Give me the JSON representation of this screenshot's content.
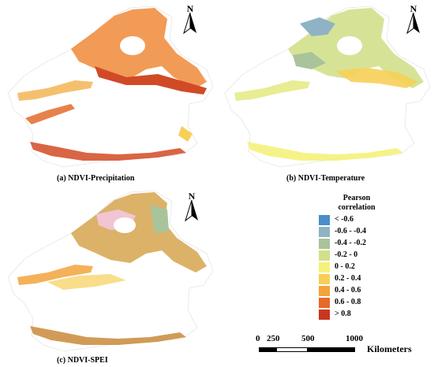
{
  "panels": [
    {
      "id": "a",
      "caption": "(a) NDVI-Precipitation"
    },
    {
      "id": "b",
      "caption": "(b) NDVI-Temperature"
    },
    {
      "id": "c",
      "caption": "(c) NDVI-SPEI"
    }
  ],
  "north_arrow": {
    "letter": "N"
  },
  "legend": {
    "title_line1": "Pearson",
    "title_line2": "correlation",
    "classes": [
      {
        "label": "< -0.6",
        "color": "#4a8ec9"
      },
      {
        "label": "-0.6 - -0.4",
        "color": "#8fb3c4"
      },
      {
        "label": "-0.4 - -0.2",
        "color": "#a9c39a"
      },
      {
        "label": "-0.2 - 0",
        "color": "#d2e08c"
      },
      {
        "label": "0 - 0.2",
        "color": "#f4f27a"
      },
      {
        "label": "0.2 - 0.4",
        "color": "#f7cf58"
      },
      {
        "label": "0.4 - 0.6",
        "color": "#f3a33c"
      },
      {
        "label": "0.6 - 0.8",
        "color": "#e66a2a"
      },
      {
        "label": "> 0.8",
        "color": "#c8361f"
      }
    ]
  },
  "scale_bar": {
    "ticks": [
      "0",
      "250",
      "500",
      "1000"
    ],
    "units": "Kilometers"
  }
}
